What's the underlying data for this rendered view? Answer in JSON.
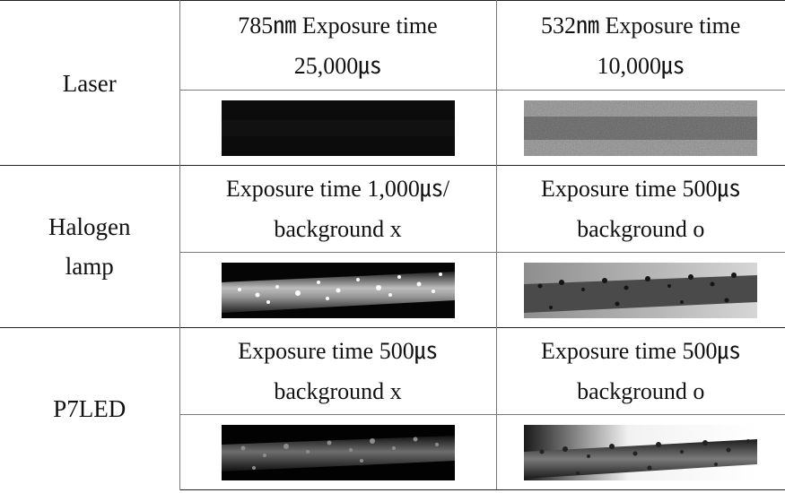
{
  "rows": [
    {
      "label": "Laser",
      "left": {
        "line1": "785㎚ Exposure time",
        "line2": "25,000㎲",
        "image": "dark-fiber-image"
      },
      "right": {
        "line1": "532㎚ Exposure time",
        "line2": "10,000㎲",
        "image": "noisy-gray-fiber-image"
      }
    },
    {
      "label_line1": "Halogen",
      "label_line2": "lamp",
      "left": {
        "line1": "Exposure time 1,000㎲/",
        "line2": "background x",
        "image": "fiber-with-droplets-dark-bg"
      },
      "right": {
        "line1": "Exposure time 500㎲",
        "line2": "background o",
        "image": "fiber-with-droplets-light-bg"
      }
    },
    {
      "label": "P7LED",
      "left": {
        "line1": "Exposure time 500㎲",
        "line2": "background x",
        "image": "fiber-with-droplets-dark-bg"
      },
      "right": {
        "line1": "Exposure time 500㎲",
        "line2": "background o",
        "image": "fiber-with-droplets-gradient-bg"
      }
    }
  ]
}
